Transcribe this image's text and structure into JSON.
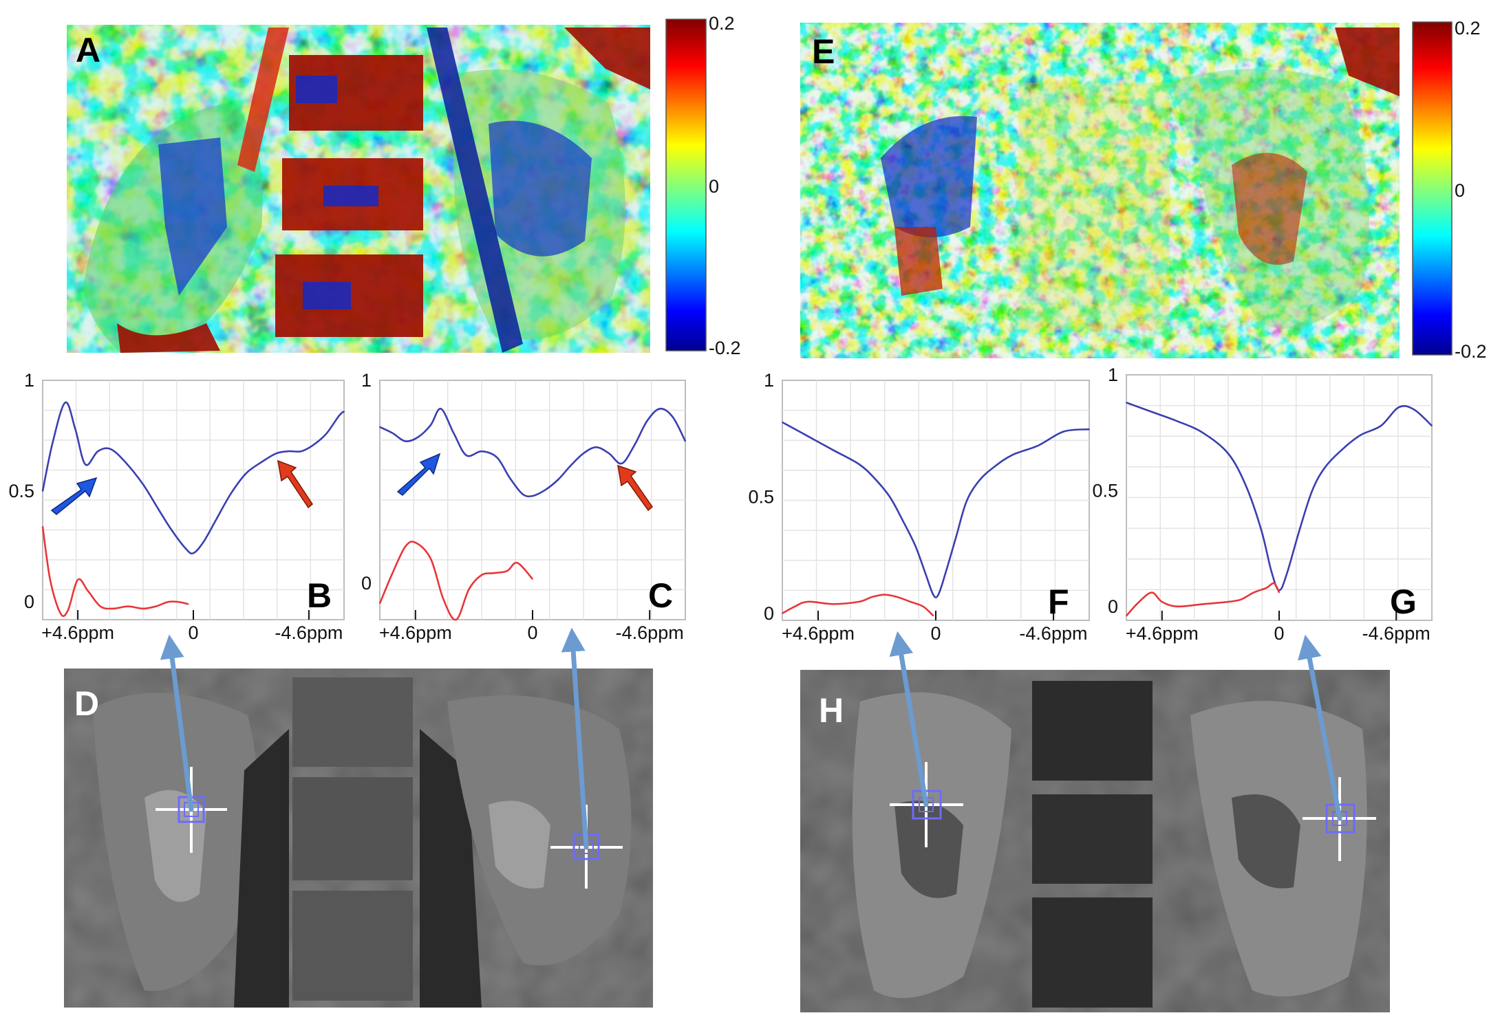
{
  "panels": {
    "A": "A",
    "B": "B",
    "C": "C",
    "D": "D",
    "E": "E",
    "F": "F",
    "G": "G",
    "H": "H"
  },
  "colorbar": {
    "ticks": [
      "0.2",
      "0",
      "-0.2"
    ],
    "range": [
      -0.2,
      0.2
    ],
    "colormap": "jet"
  },
  "colors": {
    "z_spectrum": "#3a3fb0",
    "difference": "#e8363a",
    "mri_arrow": "#6b9bd1",
    "blue_marker": "#1f57e0",
    "red_marker": "#e23a1c",
    "crosshair": "#6b6bff"
  },
  "plot_axes": {
    "y_ticks_B": [
      "1",
      "0.5",
      "0"
    ],
    "y_ticks_C": [
      "1",
      "0"
    ],
    "y_ticks_F": [
      "1",
      "0.5",
      "0"
    ],
    "y_ticks_G": [
      "1",
      "0.5",
      "0"
    ],
    "x_ticks": [
      "+4.6ppm",
      "0",
      "-4.6ppm"
    ]
  },
  "chart_data": [
    {
      "panel": "B",
      "type": "line",
      "xlim": [
        6.0,
        -6.0
      ],
      "ylim": [
        -0.08,
        1.0
      ],
      "series": [
        {
          "role": "z-spectrum",
          "x": [
            6.0,
            5.6,
            5.1,
            4.7,
            4.3,
            3.8,
            3.3,
            2.7,
            2.0,
            1.4,
            0.9,
            0.3,
            0.0,
            -0.4,
            -0.9,
            -1.5,
            -2.1,
            -2.7,
            -3.3,
            -3.8,
            -4.3,
            -4.8,
            -5.3,
            -5.8,
            -6.0
          ],
          "y": [
            0.5,
            0.72,
            0.9,
            0.78,
            0.62,
            0.68,
            0.69,
            0.63,
            0.53,
            0.42,
            0.33,
            0.24,
            0.22,
            0.27,
            0.37,
            0.49,
            0.58,
            0.63,
            0.67,
            0.68,
            0.68,
            0.71,
            0.76,
            0.84,
            0.86
          ]
        },
        {
          "role": "difference",
          "x": [
            6.0,
            5.7,
            5.3,
            5.0,
            4.6,
            4.2,
            3.7,
            3.2,
            2.6,
            2.0,
            1.5,
            1.0,
            0.6,
            0.2
          ],
          "y": [
            0.34,
            0.1,
            -0.05,
            -0.04,
            0.1,
            0.05,
            -0.02,
            -0.03,
            -0.02,
            -0.03,
            -0.02,
            0.0,
            0.0,
            -0.01
          ]
        }
      ]
    },
    {
      "panel": "C",
      "type": "line",
      "xlim": [
        6.0,
        -6.0
      ],
      "ylim": [
        -0.18,
        1.0
      ],
      "series": [
        {
          "role": "z-spectrum",
          "x": [
            6.0,
            5.5,
            5.0,
            4.5,
            4.0,
            3.6,
            3.1,
            2.6,
            2.0,
            1.4,
            0.9,
            0.4,
            0.0,
            -0.5,
            -1.0,
            -1.5,
            -2.0,
            -2.5,
            -3.0,
            -3.5,
            -4.0,
            -4.5,
            -5.0,
            -5.5,
            -6.0
          ],
          "y": [
            0.77,
            0.74,
            0.7,
            0.72,
            0.78,
            0.86,
            0.74,
            0.63,
            0.65,
            0.62,
            0.52,
            0.44,
            0.43,
            0.46,
            0.51,
            0.58,
            0.64,
            0.67,
            0.64,
            0.59,
            0.68,
            0.8,
            0.86,
            0.82,
            0.7
          ]
        },
        {
          "role": "difference",
          "x": [
            6.0,
            5.5,
            5.0,
            4.6,
            4.0,
            3.5,
            3.0,
            2.5,
            2.0,
            1.5,
            1.0,
            0.6,
            0.0
          ],
          "y": [
            -0.1,
            0.05,
            0.18,
            0.2,
            0.12,
            -0.08,
            -0.18,
            -0.03,
            0.04,
            0.05,
            0.06,
            0.1,
            0.02
          ]
        }
      ]
    },
    {
      "panel": "F",
      "type": "line",
      "xlim": [
        6.0,
        -6.0
      ],
      "ylim": [
        -0.03,
        1.0
      ],
      "series": [
        {
          "role": "z-spectrum",
          "x": [
            6.0,
            5.0,
            4.0,
            3.0,
            2.4,
            1.8,
            1.3,
            0.8,
            0.4,
            0.1,
            -0.1,
            -0.4,
            -0.8,
            -1.2,
            -1.7,
            -2.3,
            -3.0,
            -4.0,
            -5.0,
            -6.0
          ],
          "y": [
            0.82,
            0.76,
            0.7,
            0.64,
            0.58,
            0.5,
            0.4,
            0.29,
            0.17,
            0.08,
            0.08,
            0.18,
            0.33,
            0.48,
            0.57,
            0.63,
            0.68,
            0.72,
            0.78,
            0.79
          ]
        },
        {
          "role": "difference",
          "x": [
            6.0,
            5.5,
            5.0,
            4.0,
            3.0,
            2.5,
            2.0,
            1.5,
            1.0,
            0.5,
            0.1
          ],
          "y": [
            0.0,
            0.03,
            0.05,
            0.04,
            0.05,
            0.07,
            0.08,
            0.07,
            0.05,
            0.03,
            -0.01
          ]
        }
      ]
    },
    {
      "panel": "G",
      "type": "line",
      "xlim": [
        6.0,
        -6.0
      ],
      "ylim": [
        -0.06,
        1.0
      ],
      "series": [
        {
          "role": "z-spectrum",
          "x": [
            6.0,
            5.0,
            4.0,
            3.0,
            2.0,
            1.3,
            0.7,
            0.3,
            0.0,
            -0.3,
            -0.8,
            -1.3,
            -1.8,
            -2.5,
            -3.2,
            -4.0,
            -4.7,
            -5.3,
            -6.0
          ],
          "y": [
            0.88,
            0.84,
            0.8,
            0.75,
            0.66,
            0.52,
            0.33,
            0.15,
            0.07,
            0.14,
            0.33,
            0.5,
            0.6,
            0.68,
            0.74,
            0.78,
            0.86,
            0.85,
            0.78
          ]
        },
        {
          "role": "difference",
          "x": [
            6.0,
            5.5,
            5.0,
            4.6,
            4.0,
            3.0,
            2.0,
            1.5,
            1.0,
            0.5,
            0.2,
            0.0
          ],
          "y": [
            -0.04,
            0.02,
            0.06,
            0.02,
            0.0,
            0.01,
            0.02,
            0.03,
            0.06,
            0.08,
            0.1,
            0.06
          ]
        }
      ]
    }
  ]
}
